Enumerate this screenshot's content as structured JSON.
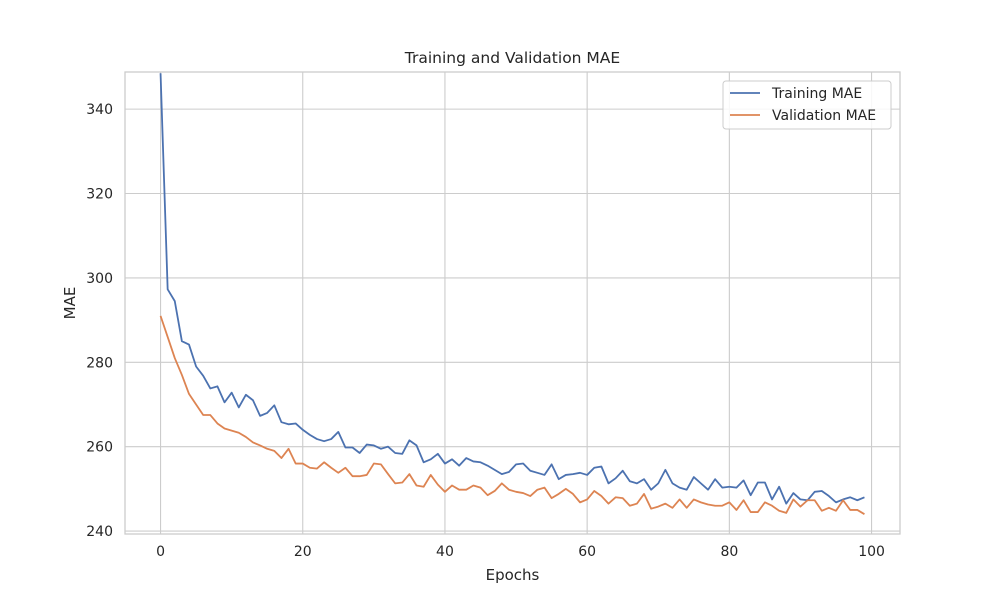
{
  "chart_data": {
    "type": "line",
    "title": "Training and Validation MAE",
    "xlabel": "Epochs",
    "ylabel": "MAE",
    "xlim": [
      -5,
      104
    ],
    "ylim": [
      239.3,
      348.8
    ],
    "xticks": [
      0,
      20,
      40,
      60,
      80,
      100
    ],
    "yticks": [
      240,
      260,
      280,
      300,
      320,
      340
    ],
    "grid": true,
    "legend_position": "top-right",
    "series": [
      {
        "name": "Training MAE",
        "color": "#4c72b0",
        "values": [
          348.5,
          297.3,
          294.5,
          285.0,
          284.2,
          279.0,
          276.8,
          273.8,
          274.3,
          270.5,
          272.8,
          269.3,
          272.3,
          271.0,
          267.3,
          268.0,
          269.8,
          265.8,
          265.3,
          265.5,
          264.0,
          262.8,
          261.8,
          261.3,
          261.8,
          263.5,
          259.8,
          259.8,
          258.5,
          260.5,
          260.3,
          259.5,
          260.0,
          258.5,
          258.3,
          261.5,
          260.3,
          256.3,
          257.0,
          258.3,
          256.0,
          257.0,
          255.5,
          257.3,
          256.5,
          256.3,
          255.5,
          254.5,
          253.5,
          254.0,
          255.8,
          256.0,
          254.3,
          253.8,
          253.3,
          255.8,
          252.3,
          253.3,
          253.5,
          253.8,
          253.3,
          255.0,
          255.3,
          251.3,
          252.5,
          254.3,
          251.8,
          251.3,
          252.3,
          249.8,
          251.3,
          254.5,
          251.3,
          250.3,
          249.8,
          252.8,
          251.3,
          249.8,
          252.3,
          250.3,
          250.5,
          250.3,
          252.0,
          248.5,
          251.5,
          251.5,
          247.5,
          250.5,
          246.5,
          249.0,
          247.5,
          247.3,
          249.3,
          249.5,
          248.3,
          246.8,
          247.5,
          248.0,
          247.3,
          248.0
        ]
      },
      {
        "name": "Validation MAE",
        "color": "#dd8452",
        "values": [
          291.0,
          286.0,
          281.0,
          277.0,
          272.5,
          270.0,
          267.5,
          267.5,
          265.5,
          264.3,
          263.8,
          263.3,
          262.3,
          261.0,
          260.3,
          259.5,
          259.0,
          257.3,
          259.5,
          256.0,
          256.0,
          255.0,
          254.8,
          256.3,
          255.0,
          253.8,
          255.0,
          253.0,
          253.0,
          253.3,
          256.0,
          255.8,
          253.5,
          251.3,
          251.5,
          253.5,
          250.8,
          250.5,
          253.3,
          251.0,
          249.3,
          250.8,
          249.8,
          249.8,
          250.8,
          250.3,
          248.5,
          249.5,
          251.3,
          249.8,
          249.3,
          249.0,
          248.3,
          249.8,
          250.3,
          247.8,
          248.8,
          250.0,
          248.8,
          246.8,
          247.5,
          249.5,
          248.3,
          246.5,
          248.0,
          247.8,
          246.0,
          246.5,
          248.8,
          245.3,
          245.8,
          246.5,
          245.5,
          247.5,
          245.5,
          247.5,
          246.8,
          246.3,
          246.0,
          246.0,
          246.8,
          245.0,
          247.3,
          244.5,
          244.5,
          246.8,
          246.0,
          244.8,
          244.3,
          247.5,
          245.8,
          247.3,
          247.3,
          244.8,
          245.5,
          244.8,
          247.3,
          245.0,
          245.0,
          244.0
        ]
      }
    ]
  }
}
